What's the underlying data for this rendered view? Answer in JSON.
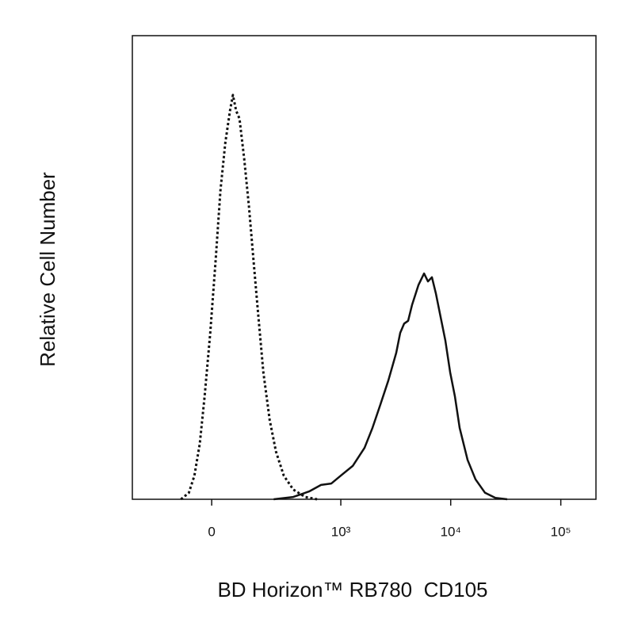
{
  "chart_data": {
    "type": "histogram-overlay",
    "xlabel": "BD Horizon™ RB780  CD105",
    "ylabel": "Relative Cell Number",
    "xscale": "biexponential",
    "xlim": [
      -342,
      208600
    ],
    "xticks": [
      0,
      {
        "value": 1000,
        "label": "10³"
      },
      {
        "value": 10000,
        "label": "10⁴"
      },
      {
        "value": 100000,
        "label": "10⁵"
      }
    ],
    "ylim": [
      0,
      100
    ],
    "series": [
      {
        "style": "dotted",
        "color": "#111111",
        "x": [
          -93,
          -67,
          -50,
          -34,
          -20,
          -4,
          11,
          25,
          39,
          53,
          62,
          72,
          83,
          99,
          116,
          134,
          154,
          176,
          207,
          241,
          290,
          359,
          467,
          604
        ],
        "values": [
          0,
          1.4,
          5.1,
          12,
          22.2,
          35.9,
          51.3,
          66.7,
          76.9,
          83.8,
          87.2,
          83.8,
          82.1,
          73.5,
          63.2,
          51.3,
          39.3,
          27.4,
          17.1,
          10.3,
          5.1,
          2.1,
          0.5,
          0
        ]
      },
      {
        "style": "solid",
        "color": "#111111",
        "x": [
          228,
          359,
          509,
          658,
          818,
          1000,
          1285,
          1648,
          1945,
          2299,
          2712,
          3200,
          3480,
          3780,
          4104,
          4455,
          5090,
          5724,
          6210,
          6750,
          7330,
          8100,
          8950,
          9882,
          10920,
          12060,
          14230,
          16800,
          20490,
          25450,
          32580
        ],
        "values": [
          0,
          0.5,
          1.7,
          3.1,
          3.4,
          5.1,
          7.2,
          11.1,
          15.4,
          20.5,
          25.6,
          31.6,
          35.9,
          37.9,
          38.5,
          41.9,
          46.2,
          48.7,
          47.0,
          47.9,
          44.4,
          39.3,
          34.2,
          27.4,
          22.2,
          15.4,
          8.5,
          4.3,
          1.4,
          0.3,
          0
        ]
      }
    ]
  }
}
